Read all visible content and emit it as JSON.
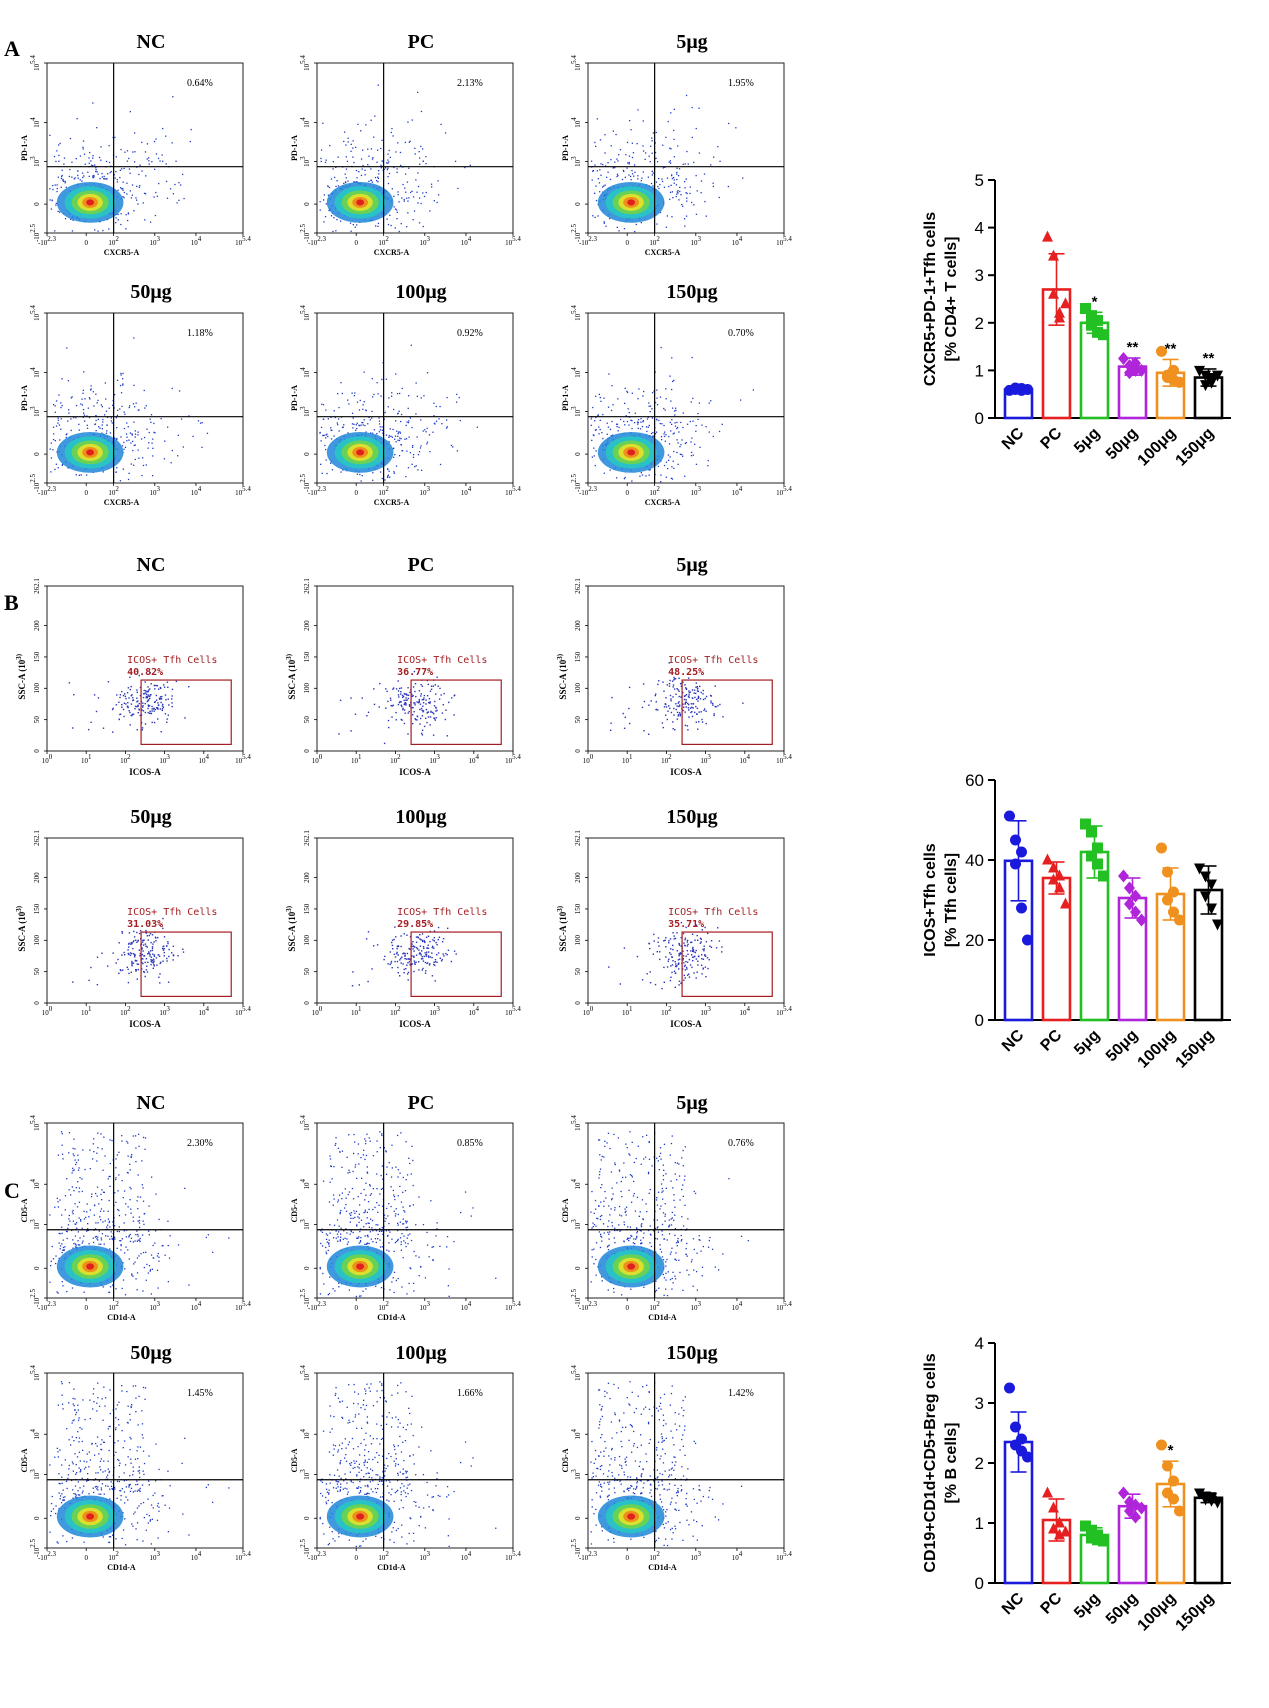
{
  "panel_labels": [
    "A",
    "B",
    "C"
  ],
  "groups": [
    "NC",
    "PC",
    "5μg",
    "50μg",
    "100μg",
    "150μg"
  ],
  "group_colors": [
    "#1a1adc",
    "#e62020",
    "#22c022",
    "#b025d9",
    "#f0901e",
    "#000000"
  ],
  "tick_labels": {
    "log54": [
      "-10^2.3",
      "0",
      "10^2",
      "10^3",
      "10^4",
      "10^5.4"
    ],
    "log54_y": [
      "-10^2.5",
      "0",
      "10^3",
      "10^4",
      "10^5.4"
    ],
    "lin": [
      "10^0",
      "10^1",
      "10^2",
      "10^3",
      "10^4",
      "10^5.4"
    ],
    "ssc": [
      "0",
      "50",
      "100",
      "150",
      "200",
      "262.1"
    ]
  },
  "flow": {
    "A": {
      "x_label": "CXCR5-A",
      "y_label": "PD-1-A",
      "percents": [
        "0.64%",
        "2.13%",
        "1.95%",
        "1.18%",
        "0.92%",
        "0.70%"
      ]
    },
    "B": {
      "x_label": "ICOS-A",
      "y_label": "SSC-A (10^3)",
      "gate_label": "ICOS+ Tfh Cells",
      "percents": [
        "40.82%",
        "36.77%",
        "48.25%",
        "31.03%",
        "29.85%",
        "35.71%"
      ]
    },
    "C": {
      "x_label": "CD1d-A",
      "y_label": "CD5-A",
      "percents": [
        "2.30%",
        "0.85%",
        "0.76%",
        "1.45%",
        "1.66%",
        "1.42%"
      ]
    }
  },
  "chart_data": [
    {
      "type": "bar",
      "panel": "A",
      "ylabel_line1": "CXCR5+PD-1+Tfh cells",
      "ylabel_line2": "[% CD4+ T cells]",
      "categories": [
        "NC",
        "PC",
        "5μg",
        "50μg",
        "100μg",
        "150μg"
      ],
      "values": [
        0.6,
        2.7,
        2.0,
        1.08,
        0.95,
        0.85
      ],
      "errors": [
        0.05,
        0.75,
        0.22,
        0.18,
        0.28,
        0.18
      ],
      "points": [
        [
          0.58,
          0.6,
          0.62,
          0.63,
          0.58,
          0.6
        ],
        [
          3.8,
          3.4,
          2.2,
          2.6,
          2.1,
          2.4
        ],
        [
          2.3,
          2.15,
          1.8,
          1.95,
          2.05,
          1.75
        ],
        [
          1.25,
          1.1,
          1.0,
          0.95,
          1.15,
          1.0
        ],
        [
          1.4,
          0.9,
          0.8,
          0.85,
          1.0,
          0.75
        ],
        [
          1.0,
          0.9,
          0.75,
          0.7,
          0.85,
          0.9
        ]
      ],
      "markers": [
        "circle",
        "triangle",
        "square",
        "diamond",
        "circle",
        "triangle-down"
      ],
      "significance": [
        "",
        "",
        "*",
        "**",
        "**",
        "**"
      ],
      "ylim": [
        0,
        5
      ],
      "yticks": [
        "0",
        "1",
        "2",
        "3",
        "4",
        "5"
      ]
    },
    {
      "type": "bar",
      "panel": "B",
      "ylabel_line1": "ICOS+Tfh cells",
      "ylabel_line2": "[% Tfh cells]",
      "categories": [
        "NC",
        "PC",
        "5μg",
        "50μg",
        "100μg",
        "150μg"
      ],
      "values": [
        39.8,
        35.5,
        42.0,
        30.5,
        31.5,
        32.5
      ],
      "errors": [
        10.0,
        4.0,
        6.5,
        5.0,
        6.5,
        6.0
      ],
      "points": [
        [
          51,
          45,
          42,
          39,
          28,
          20
        ],
        [
          40,
          38,
          36,
          35,
          33,
          29
        ],
        [
          49,
          47,
          43,
          41,
          39,
          36
        ],
        [
          36,
          33,
          31,
          29,
          27,
          25
        ],
        [
          43,
          37,
          32,
          30,
          27,
          25
        ],
        [
          38,
          36,
          34,
          31,
          28,
          24
        ]
      ],
      "markers": [
        "circle",
        "triangle",
        "square",
        "diamond",
        "circle",
        "triangle-down"
      ],
      "significance": [
        "",
        "",
        "",
        "",
        "",
        ""
      ],
      "ylim": [
        0,
        60
      ],
      "yticks": [
        "0",
        "20",
        "40",
        "60"
      ]
    },
    {
      "type": "bar",
      "panel": "C",
      "ylabel_line1": "CD19+CD1d+CD5+Breg cells",
      "ylabel_line2": "[% B cells]",
      "categories": [
        "NC",
        "PC",
        "5μg",
        "50μg",
        "100μg",
        "150μg"
      ],
      "values": [
        2.35,
        1.05,
        0.8,
        1.28,
        1.65,
        1.42
      ],
      "errors": [
        0.5,
        0.35,
        0.12,
        0.2,
        0.38,
        0.08
      ],
      "points": [
        [
          3.25,
          2.6,
          2.4,
          2.3,
          2.2,
          2.1
        ],
        [
          1.5,
          1.25,
          1.0,
          0.9,
          0.8,
          0.85
        ],
        [
          0.95,
          0.88,
          0.8,
          0.75,
          0.72,
          0.7
        ],
        [
          1.5,
          1.35,
          1.3,
          1.2,
          1.1,
          1.25
        ],
        [
          2.3,
          1.95,
          1.7,
          1.5,
          1.4,
          1.2
        ],
        [
          1.5,
          1.45,
          1.42,
          1.4,
          1.38,
          1.35
        ]
      ],
      "markers": [
        "circle",
        "triangle",
        "square",
        "diamond",
        "circle",
        "triangle-down"
      ],
      "significance": [
        "",
        "",
        "",
        "",
        "*",
        ""
      ],
      "ylim": [
        0,
        4
      ],
      "yticks": [
        "0",
        "1",
        "2",
        "3",
        "4"
      ]
    }
  ]
}
